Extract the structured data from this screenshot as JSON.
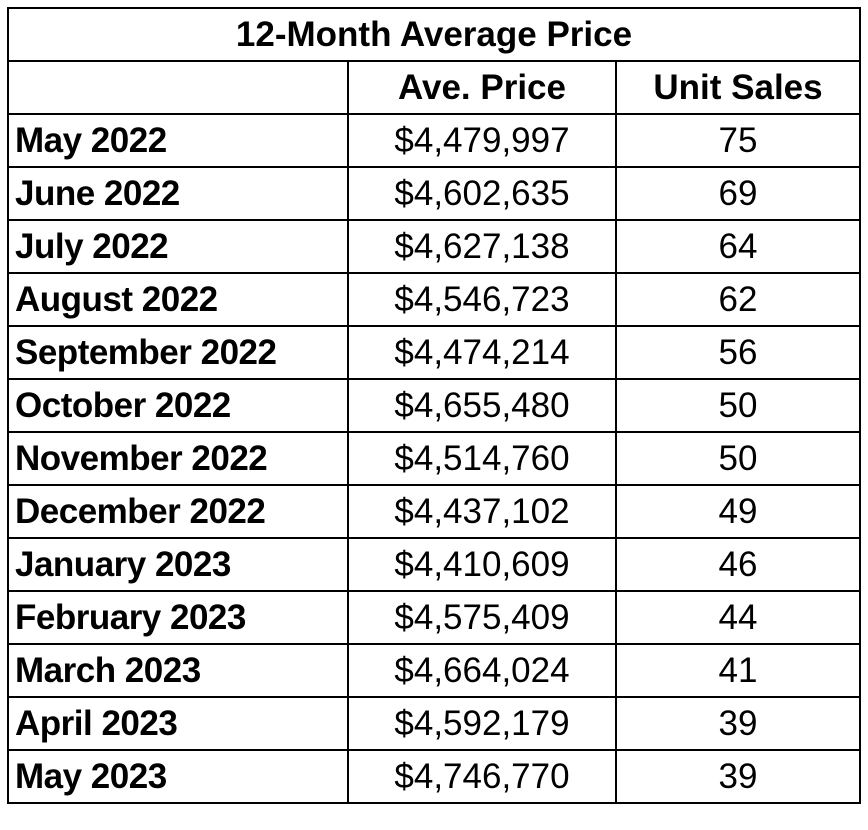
{
  "chart_data": {
    "type": "table",
    "title": "12-Month Average Price",
    "columns": [
      "",
      "Ave. Price",
      "Unit Sales"
    ],
    "rows": [
      {
        "month": "May 2022",
        "price": "$4,479,997",
        "sales": "75"
      },
      {
        "month": "June 2022",
        "price": "$4,602,635",
        "sales": "69"
      },
      {
        "month": "July 2022",
        "price": "$4,627,138",
        "sales": "64"
      },
      {
        "month": "August 2022",
        "price": "$4,546,723",
        "sales": "62"
      },
      {
        "month": "September 2022",
        "price": "$4,474,214",
        "sales": "56"
      },
      {
        "month": "October 2022",
        "price": "$4,655,480",
        "sales": "50"
      },
      {
        "month": "November 2022",
        "price": "$4,514,760",
        "sales": "50"
      },
      {
        "month": "December 2022",
        "price": "$4,437,102",
        "sales": "49"
      },
      {
        "month": "January 2023",
        "price": "$4,410,609",
        "sales": "46"
      },
      {
        "month": "February 2023",
        "price": "$4,575,409",
        "sales": "44"
      },
      {
        "month": "March 2023",
        "price": "$4,664,024",
        "sales": "41"
      },
      {
        "month": "April 2023",
        "price": "$4,592,179",
        "sales": "39"
      },
      {
        "month": "May 2023",
        "price": "$4,746,770",
        "sales": "39"
      }
    ],
    "colors": {
      "border": "#000000",
      "background": "#ffffff",
      "text": "#000000"
    }
  }
}
